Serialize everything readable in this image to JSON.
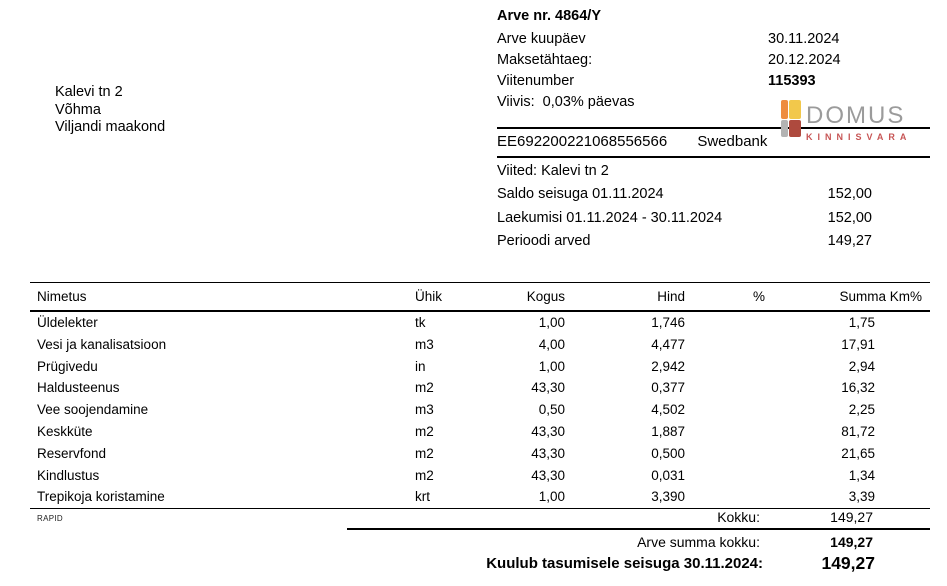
{
  "recipient": {
    "line1": "Kalevi tn 2",
    "line2": "Võhma",
    "line3": "Viljandi maakond"
  },
  "invoice": {
    "title": "Arve nr. 4864/Y",
    "fields": [
      {
        "label": "Arve kuupäev",
        "value": "30.11.2024"
      },
      {
        "label": "Maksetähtaeg:",
        "value": "20.12.2024"
      },
      {
        "label": "Viitenumber",
        "value": "115393"
      },
      {
        "label": "Viivis:  0,03% päevas",
        "value": ""
      }
    ]
  },
  "logo": {
    "name": "DOMUS",
    "subtitle": "KINNISVARA",
    "colors": {
      "name_gray": "#9b9b9b",
      "subtitle_red": "#c75555",
      "square_orange": "#ee8c3f",
      "square_yellow": "#f2c84b",
      "square_gray": "#b3b3b3",
      "square_dark_red": "#ae4a3e"
    }
  },
  "bank": {
    "iban": "EE692200221068556566",
    "bank_name": "Swedbank"
  },
  "balance": {
    "reference": "Viited: Kalevi tn 2",
    "rows": [
      {
        "label": "Saldo seisuga 01.11.2024",
        "value": "152,00"
      },
      {
        "label": "Laekumisi 01.11.2024 - 30.11.2024",
        "value": "152,00"
      },
      {
        "label": "Perioodi arved",
        "value": "149,27"
      }
    ]
  },
  "table": {
    "headers": [
      "Nimetus",
      "Ühik",
      "Kogus",
      "Hind",
      "%",
      "Summa Km%"
    ],
    "rows": [
      {
        "name": "Üldelekter",
        "unit": "tk",
        "qty": "1,00",
        "price": "1,746",
        "pct": "",
        "sum": "1,75"
      },
      {
        "name": "Vesi ja kanalisatsioon",
        "unit": "m3",
        "qty": "4,00",
        "price": "4,477",
        "pct": "",
        "sum": "17,91"
      },
      {
        "name": "Prügivedu",
        "unit": "in",
        "qty": "1,00",
        "price": "2,942",
        "pct": "",
        "sum": "2,94"
      },
      {
        "name": "Haldusteenus",
        "unit": "m2",
        "qty": "43,30",
        "price": "0,377",
        "pct": "",
        "sum": "16,32"
      },
      {
        "name": "Vee soojendamine",
        "unit": "m3",
        "qty": "0,50",
        "price": "4,502",
        "pct": "",
        "sum": "2,25"
      },
      {
        "name": "Keskküte",
        "unit": "m2",
        "qty": "43,30",
        "price": "1,887",
        "pct": "",
        "sum": "81,72"
      },
      {
        "name": "Reservfond",
        "unit": "m2",
        "qty": "43,30",
        "price": "0,500",
        "pct": "",
        "sum": "21,65"
      },
      {
        "name": "Kindlustus",
        "unit": "m2",
        "qty": "43,30",
        "price": "0,031",
        "pct": "",
        "sum": "1,34"
      },
      {
        "name": "Trepikoja koristamine",
        "unit": "krt",
        "qty": "1,00",
        "price": "3,390",
        "pct": "",
        "sum": "3,39"
      }
    ]
  },
  "footer": {
    "vendor": "RAPID",
    "totals": [
      {
        "label": "Kokku:",
        "value": "149,27"
      },
      {
        "label": "Arve summa kokku:",
        "value": "149,27"
      },
      {
        "label": "Kuulub tasumisele seisuga 30.11.2024:",
        "value": "149,27"
      }
    ]
  }
}
